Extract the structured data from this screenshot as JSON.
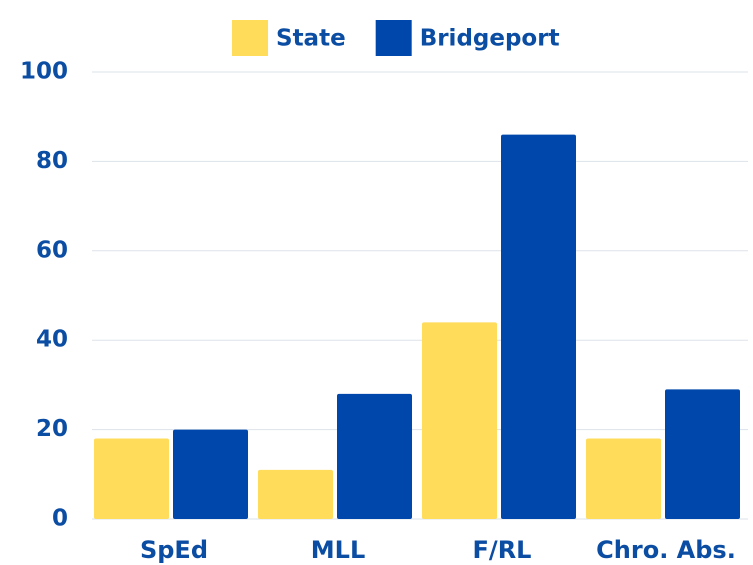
{
  "chart_data": {
    "type": "bar",
    "categories": [
      "SpEd",
      "MLL",
      "F/RL",
      "Chro. Abs."
    ],
    "series": [
      {
        "name": "State",
        "color": "#ffdc5a",
        "values": [
          18,
          11,
          44,
          18
        ]
      },
      {
        "name": "Bridgeport",
        "color": "#0047ab",
        "values": [
          20,
          28,
          86,
          29
        ]
      }
    ],
    "ylim": [
      0,
      100
    ],
    "yticks": [
      0,
      20,
      40,
      60,
      80,
      100
    ],
    "grid": true,
    "legend": "top"
  }
}
